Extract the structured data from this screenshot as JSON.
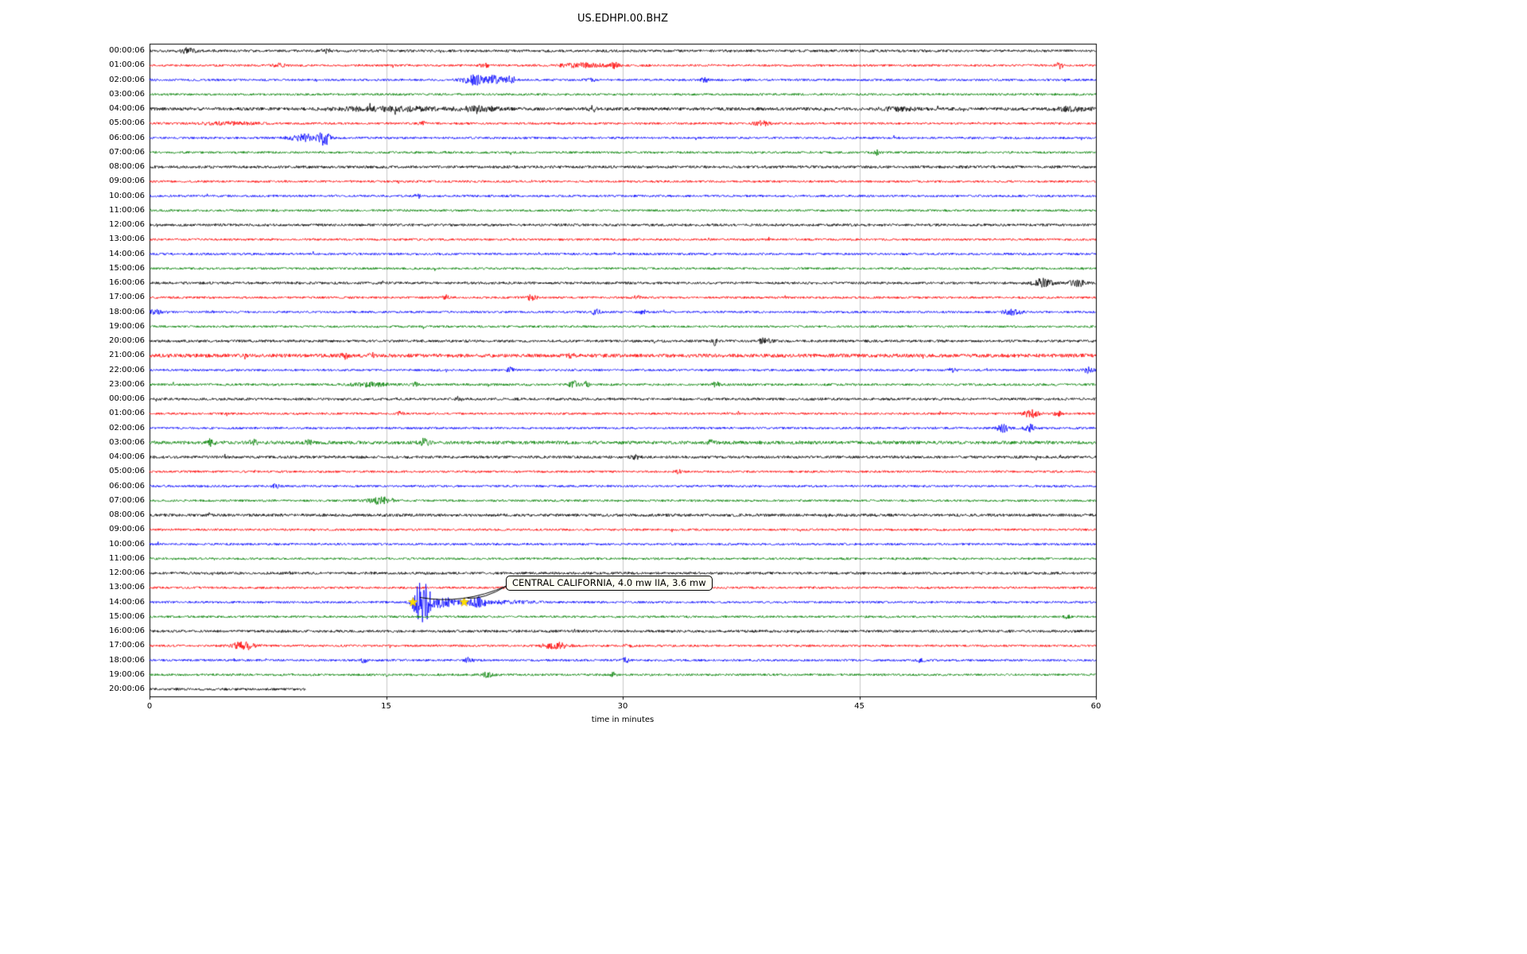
{
  "chart_data": {
    "type": "line",
    "subtype": "seismogram-dayplot",
    "title": "US.EDHPI.00.BHZ",
    "xlabel": "time in minutes",
    "x_ticks": [
      0,
      15,
      30,
      45,
      60
    ],
    "x_range": [
      0,
      60
    ],
    "grid": "vertical-only",
    "colors": {
      "black": "#000000",
      "red": "#ff0000",
      "blue": "#0000ff",
      "green": "#008000",
      "grid": "#c9c9c9",
      "frame": "#000000",
      "star": "#ffdf00"
    },
    "annotation": {
      "text": "CENTRAL CALIFORNIA, 4.0 mw IIA, 3.6 mw",
      "row_index": 38,
      "row_label": "14:00:06",
      "points_minutes": [
        16.7,
        19.95
      ]
    },
    "markers": [
      {
        "shape": "star",
        "row_index": 38,
        "minute": 16.7
      },
      {
        "shape": "star",
        "row_index": 38,
        "minute": 19.95
      }
    ],
    "rows": [
      {
        "label": "00:00:06",
        "color": "black",
        "base": 1.6,
        "events": [
          {
            "m": 2.4,
            "d": 0.8,
            "a": 3
          },
          {
            "m": 11.2,
            "d": 0.5,
            "a": 2
          }
        ]
      },
      {
        "label": "01:00:06",
        "color": "red",
        "base": 1.4,
        "events": [
          {
            "m": 8.2,
            "d": 0.6,
            "a": 2
          },
          {
            "m": 21.2,
            "d": 0.5,
            "a": 2.5
          },
          {
            "m": 27.5,
            "d": 2.5,
            "a": 2.5
          },
          {
            "m": 29.5,
            "d": 0.4,
            "a": 3
          },
          {
            "m": 57.7,
            "d": 0.4,
            "a": 4
          }
        ]
      },
      {
        "label": "02:00:06",
        "color": "blue",
        "base": 1.4,
        "events": [
          {
            "m": 20.6,
            "d": 1.2,
            "a": 6
          },
          {
            "m": 21.9,
            "d": 0.8,
            "a": 5
          },
          {
            "m": 22.9,
            "d": 0.6,
            "a": 4
          },
          {
            "m": 28,
            "d": 0.4,
            "a": 2.5
          },
          {
            "m": 35.2,
            "d": 0.4,
            "a": 2.5
          }
        ]
      },
      {
        "label": "03:00:06",
        "color": "green",
        "base": 1.4,
        "events": []
      },
      {
        "label": "04:00:06",
        "color": "black",
        "base": 2.0,
        "events": [
          {
            "m": 15.2,
            "d": 6,
            "a": 2
          },
          {
            "m": 21,
            "d": 2,
            "a": 2.5
          },
          {
            "m": 28.1,
            "d": 0.4,
            "a": 3
          },
          {
            "m": 47.5,
            "d": 2,
            "a": 1.8
          },
          {
            "m": 58.5,
            "d": 2,
            "a": 2
          }
        ]
      },
      {
        "label": "05:00:06",
        "color": "red",
        "base": 1.4,
        "events": [
          {
            "m": 5,
            "d": 3,
            "a": 1.5
          },
          {
            "m": 17.3,
            "d": 0.3,
            "a": 3
          },
          {
            "m": 38.8,
            "d": 0.8,
            "a": 3
          }
        ]
      },
      {
        "label": "06:00:06",
        "color": "blue",
        "base": 1.4,
        "events": [
          {
            "m": 9.9,
            "d": 1.6,
            "a": 4
          },
          {
            "m": 11.1,
            "d": 0.5,
            "a": 9
          }
        ]
      },
      {
        "label": "07:00:06",
        "color": "green",
        "base": 1.4,
        "events": [
          {
            "m": 46.1,
            "d": 0.3,
            "a": 3.5
          }
        ]
      },
      {
        "label": "08:00:06",
        "color": "black",
        "base": 1.7,
        "events": []
      },
      {
        "label": "09:00:06",
        "color": "red",
        "base": 1.4,
        "events": []
      },
      {
        "label": "10:00:06",
        "color": "blue",
        "base": 1.4,
        "events": [
          {
            "m": 17,
            "d": 0.3,
            "a": 2.5
          }
        ]
      },
      {
        "label": "11:00:06",
        "color": "green",
        "base": 1.4,
        "events": []
      },
      {
        "label": "12:00:06",
        "color": "black",
        "base": 1.6,
        "events": []
      },
      {
        "label": "13:00:06",
        "color": "red",
        "base": 1.4,
        "events": []
      },
      {
        "label": "14:00:06",
        "color": "blue",
        "base": 1.4,
        "events": []
      },
      {
        "label": "15:00:06",
        "color": "green",
        "base": 1.4,
        "events": []
      },
      {
        "label": "16:00:06",
        "color": "black",
        "base": 1.6,
        "events": [
          {
            "m": 56.6,
            "d": 1,
            "a": 5
          },
          {
            "m": 58.8,
            "d": 0.8,
            "a": 4
          }
        ]
      },
      {
        "label": "17:00:06",
        "color": "red",
        "base": 1.4,
        "events": [
          {
            "m": 18.8,
            "d": 0.3,
            "a": 3
          },
          {
            "m": 24.2,
            "d": 0.6,
            "a": 3
          },
          {
            "m": 30.9,
            "d": 0.3,
            "a": 2.5
          }
        ]
      },
      {
        "label": "18:00:06",
        "color": "blue",
        "base": 1.4,
        "events": [
          {
            "m": 0.4,
            "d": 0.6,
            "a": 3
          },
          {
            "m": 28.3,
            "d": 0.5,
            "a": 3
          },
          {
            "m": 31.3,
            "d": 0.4,
            "a": 2.5
          },
          {
            "m": 54.7,
            "d": 1,
            "a": 3
          }
        ]
      },
      {
        "label": "19:00:06",
        "color": "green",
        "base": 1.4,
        "events": []
      },
      {
        "label": "20:00:06",
        "color": "black",
        "base": 1.6,
        "events": [
          {
            "m": 35.8,
            "d": 0.25,
            "a": 5
          },
          {
            "m": 39,
            "d": 0.7,
            "a": 3
          }
        ]
      },
      {
        "label": "21:00:06",
        "color": "red",
        "base": 2.3,
        "events": [
          {
            "m": 12.4,
            "d": 0.4,
            "a": 3
          },
          {
            "m": 14.1,
            "d": 0.3,
            "a": 2.5
          },
          {
            "m": 26.7,
            "d": 0.3,
            "a": 3
          }
        ]
      },
      {
        "label": "22:00:06",
        "color": "blue",
        "base": 1.4,
        "events": [
          {
            "m": 22.9,
            "d": 0.4,
            "a": 3
          },
          {
            "m": 50.9,
            "d": 0.4,
            "a": 2.5
          },
          {
            "m": 59.5,
            "d": 0.6,
            "a": 3
          }
        ]
      },
      {
        "label": "23:00:06",
        "color": "green",
        "base": 1.5,
        "events": [
          {
            "m": 14,
            "d": 2,
            "a": 2
          },
          {
            "m": 16.9,
            "d": 0.4,
            "a": 2.5
          },
          {
            "m": 26.9,
            "d": 0.5,
            "a": 4
          },
          {
            "m": 27.7,
            "d": 0.3,
            "a": 3
          },
          {
            "m": 35.9,
            "d": 0.3,
            "a": 4
          }
        ]
      },
      {
        "label": "00:00:06",
        "color": "black",
        "base": 1.6,
        "events": [
          {
            "m": 19.6,
            "d": 0.3,
            "a": 2.5
          }
        ]
      },
      {
        "label": "01:00:06",
        "color": "red",
        "base": 1.4,
        "events": [
          {
            "m": 15.9,
            "d": 0.3,
            "a": 2.5
          },
          {
            "m": 55.9,
            "d": 0.8,
            "a": 4.5
          },
          {
            "m": 57.6,
            "d": 0.4,
            "a": 4
          }
        ]
      },
      {
        "label": "02:00:06",
        "color": "blue",
        "base": 1.4,
        "events": [
          {
            "m": 54.1,
            "d": 0.6,
            "a": 5
          },
          {
            "m": 55.8,
            "d": 0.5,
            "a": 4.5
          }
        ]
      },
      {
        "label": "03:00:06",
        "color": "green",
        "base": 2.1,
        "events": [
          {
            "m": 3.9,
            "d": 0.4,
            "a": 4
          },
          {
            "m": 6.6,
            "d": 0.4,
            "a": 3
          },
          {
            "m": 10.1,
            "d": 0.4,
            "a": 2.5
          },
          {
            "m": 17.4,
            "d": 0.5,
            "a": 4
          },
          {
            "m": 35.6,
            "d": 0.3,
            "a": 3
          }
        ]
      },
      {
        "label": "04:00:06",
        "color": "black",
        "base": 1.7,
        "events": [
          {
            "m": 30.8,
            "d": 0.5,
            "a": 2
          }
        ]
      },
      {
        "label": "05:00:06",
        "color": "red",
        "base": 1.4,
        "events": [
          {
            "m": 33.5,
            "d": 0.3,
            "a": 2.5
          }
        ]
      },
      {
        "label": "06:00:06",
        "color": "blue",
        "base": 1.4,
        "events": [
          {
            "m": 8,
            "d": 0.4,
            "a": 2
          }
        ]
      },
      {
        "label": "07:00:06",
        "color": "green",
        "base": 1.4,
        "events": [
          {
            "m": 14.7,
            "d": 1.3,
            "a": 4
          }
        ]
      },
      {
        "label": "08:00:06",
        "color": "black",
        "base": 1.8,
        "events": []
      },
      {
        "label": "09:00:06",
        "color": "red",
        "base": 1.4,
        "events": []
      },
      {
        "label": "10:00:06",
        "color": "blue",
        "base": 1.4,
        "events": []
      },
      {
        "label": "11:00:06",
        "color": "green",
        "base": 1.4,
        "events": []
      },
      {
        "label": "12:00:06",
        "color": "black",
        "base": 1.6,
        "events": []
      },
      {
        "label": "13:00:06",
        "color": "red",
        "base": 1.4,
        "events": []
      },
      {
        "label": "14:00:06",
        "color": "blue",
        "base": 1.4,
        "events": [
          {
            "m": 17.3,
            "d": 0.9,
            "a": 26
          },
          {
            "m": 18.4,
            "d": 1.8,
            "a": 6
          },
          {
            "m": 20.8,
            "d": 0.9,
            "a": 6
          },
          {
            "m": 22.8,
            "d": 3,
            "a": 1.5
          }
        ]
      },
      {
        "label": "15:00:06",
        "color": "green",
        "base": 1.4,
        "events": [
          {
            "m": 58.2,
            "d": 0.3,
            "a": 2.5
          }
        ]
      },
      {
        "label": "16:00:06",
        "color": "black",
        "base": 1.6,
        "events": []
      },
      {
        "label": "17:00:06",
        "color": "red",
        "base": 1.4,
        "events": [
          {
            "m": 6,
            "d": 1.2,
            "a": 5
          },
          {
            "m": 25.8,
            "d": 1.3,
            "a": 4
          },
          {
            "m": 30.4,
            "d": 0.4,
            "a": 2.5
          }
        ]
      },
      {
        "label": "18:00:06",
        "color": "blue",
        "base": 1.4,
        "events": [
          {
            "m": 13.6,
            "d": 0.4,
            "a": 2.5
          },
          {
            "m": 20.2,
            "d": 0.4,
            "a": 2.5
          },
          {
            "m": 30.2,
            "d": 0.4,
            "a": 2.5
          },
          {
            "m": 48.9,
            "d": 0.4,
            "a": 2.5
          }
        ]
      },
      {
        "label": "19:00:06",
        "color": "green",
        "base": 1.4,
        "events": [
          {
            "m": 21.4,
            "d": 0.6,
            "a": 3
          },
          {
            "m": 29.4,
            "d": 0.3,
            "a": 2.5
          }
        ]
      },
      {
        "label": "20:00:06",
        "color": "black",
        "base": 1.6,
        "end_minute": 9.9,
        "events": []
      }
    ]
  }
}
